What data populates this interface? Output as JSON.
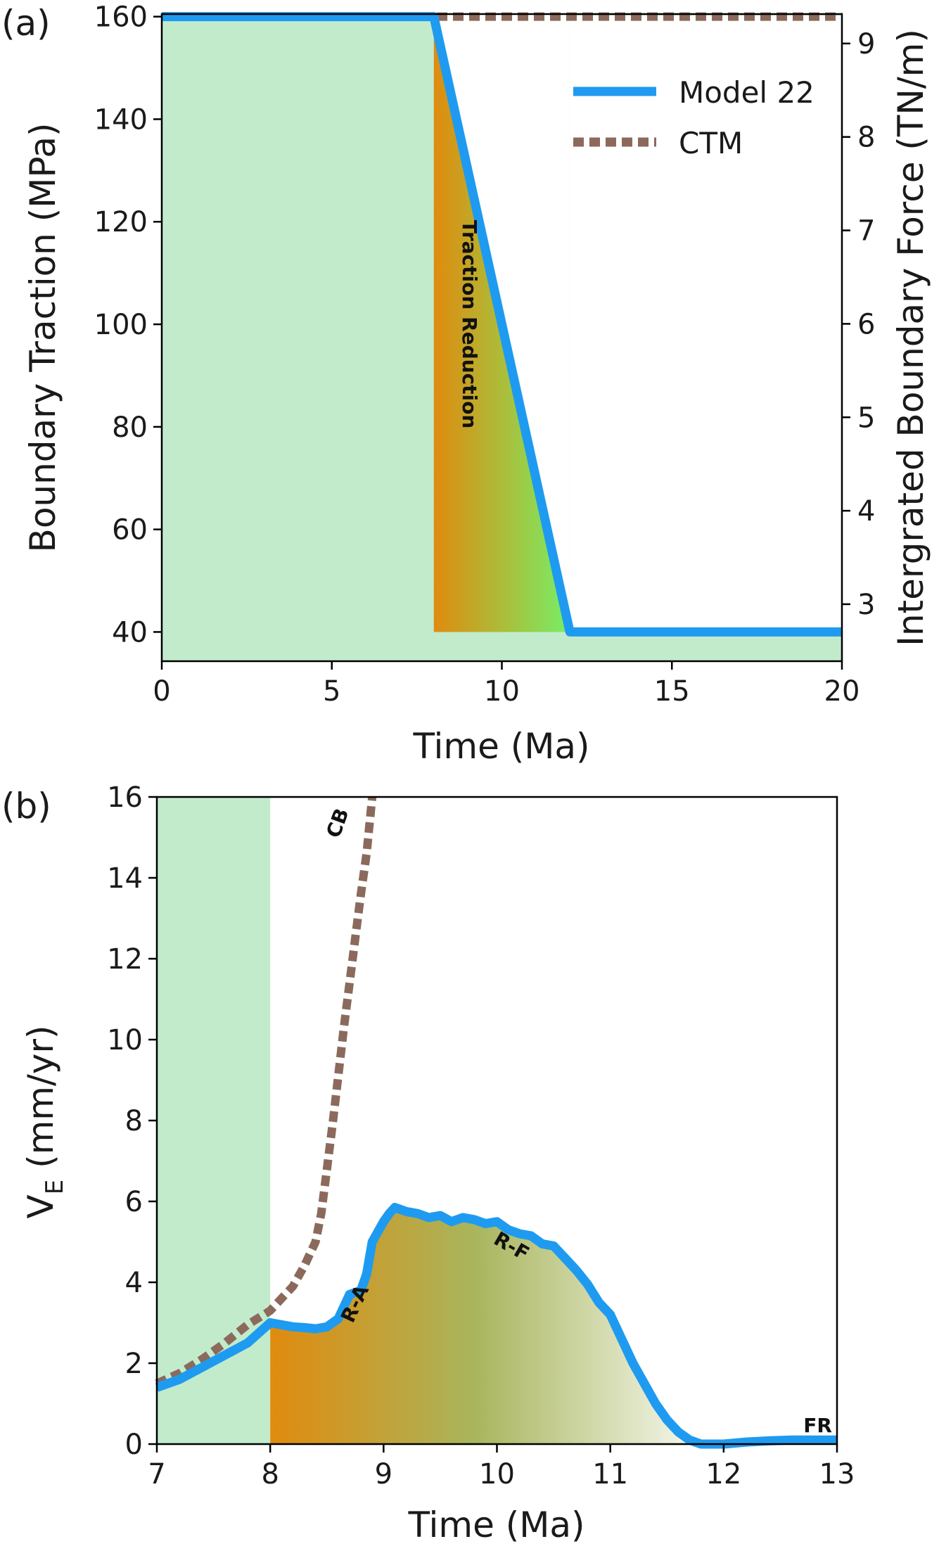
{
  "chart_data": [
    {
      "panel_label": "(a)",
      "type": "line",
      "xlabel": "Time (Ma)",
      "ylabel": "Boundary Traction (MPa)",
      "ylabel_right": "Intergrated Boundary Force (TN/m)",
      "xlim": [
        0,
        20
      ],
      "ylim": [
        34.3,
        160.5
      ],
      "ylim_right": [
        2.39,
        9.315
      ],
      "xticks": [
        "0",
        "5",
        "10",
        "15",
        "20"
      ],
      "yticks": [
        "40",
        "60",
        "80",
        "100",
        "120",
        "140",
        "160"
      ],
      "yticks_right": [
        "3",
        "4",
        "5",
        "6",
        "7",
        "8",
        "9"
      ],
      "series": [
        {
          "name": "Model 22",
          "color": "#1e9bf0",
          "style": "solid",
          "x": [
            0,
            8,
            12,
            20
          ],
          "y": [
            160,
            160,
            40,
            40
          ]
        },
        {
          "name": "CTM",
          "color": "#8b6a5c",
          "style": "dashed",
          "x": [
            0,
            20
          ],
          "y": [
            160,
            160
          ]
        }
      ],
      "shaded_regions": [
        {
          "x": [
            0,
            20
          ],
          "color": "#c2ebcc"
        }
      ],
      "gradient_region": {
        "x": [
          8,
          12
        ],
        "colors": [
          "#e08b0e",
          "#77ee66"
        ]
      },
      "annotations": [
        "Traction Reduction"
      ],
      "legend": {
        "position": "top-right",
        "entries": [
          "Model 22",
          "CTM"
        ]
      }
    },
    {
      "panel_label": "(b)",
      "type": "line",
      "xlabel": "Time (Ma)",
      "ylabel_main": "V",
      "ylabel_sub": "E",
      "ylabel_suffix": " (mm/yr)",
      "xlim": [
        7,
        13
      ],
      "ylim": [
        0,
        16
      ],
      "xticks": [
        "7",
        "8",
        "9",
        "10",
        "11",
        "12",
        "13"
      ],
      "yticks": [
        "0",
        "2",
        "4",
        "6",
        "8",
        "10",
        "12",
        "14",
        "16"
      ],
      "series": [
        {
          "name": "Model 22",
          "color": "#1e9bf0",
          "style": "solid",
          "x": [
            7.0,
            7.2,
            7.4,
            7.6,
            7.8,
            8.0,
            8.1,
            8.2,
            8.3,
            8.4,
            8.5,
            8.6,
            8.7,
            8.8,
            8.85,
            8.9,
            9.0,
            9.05,
            9.1,
            9.2,
            9.3,
            9.4,
            9.5,
            9.6,
            9.7,
            9.8,
            9.9,
            10.0,
            10.1,
            10.2,
            10.3,
            10.4,
            10.5,
            10.6,
            10.7,
            10.8,
            10.9,
            11.0,
            11.1,
            11.2,
            11.3,
            11.4,
            11.5,
            11.6,
            11.7,
            11.8,
            11.9,
            12.0,
            12.2,
            12.4,
            12.6,
            12.8,
            13.0
          ],
          "y": [
            1.4,
            1.6,
            1.9,
            2.2,
            2.5,
            3.0,
            2.95,
            2.9,
            2.88,
            2.85,
            2.9,
            3.1,
            3.7,
            3.8,
            4.2,
            5.0,
            5.5,
            5.7,
            5.85,
            5.75,
            5.7,
            5.6,
            5.65,
            5.5,
            5.6,
            5.55,
            5.45,
            5.5,
            5.3,
            5.2,
            5.15,
            4.95,
            4.9,
            4.6,
            4.3,
            3.95,
            3.5,
            3.2,
            2.6,
            2.0,
            1.5,
            1.0,
            0.6,
            0.3,
            0.1,
            0.0,
            0.0,
            0.0,
            0.05,
            0.08,
            0.1,
            0.1,
            0.1
          ]
        },
        {
          "name": "CTM",
          "color": "#8b6a5c",
          "style": "dashed",
          "x": [
            7.0,
            7.2,
            7.4,
            7.6,
            7.8,
            8.0,
            8.1,
            8.2,
            8.3,
            8.4,
            8.45,
            8.5,
            8.55,
            8.6,
            8.65,
            8.7,
            8.75,
            8.8,
            8.85,
            8.9
          ],
          "y": [
            1.5,
            1.75,
            2.1,
            2.5,
            2.95,
            3.3,
            3.6,
            3.9,
            4.4,
            5.0,
            5.7,
            6.8,
            7.9,
            9.1,
            10.3,
            11.4,
            12.5,
            13.6,
            14.6,
            16.0
          ]
        }
      ],
      "shaded_regions": [
        {
          "x": [
            7,
            8
          ],
          "color": "#c2ebcc"
        }
      ],
      "gradient_region": {
        "x": [
          8,
          12
        ],
        "colors": [
          "#e08b0e",
          "#ffffff"
        ]
      },
      "annotations": [
        "CB",
        "R-A",
        "R-F",
        "FR"
      ]
    }
  ]
}
